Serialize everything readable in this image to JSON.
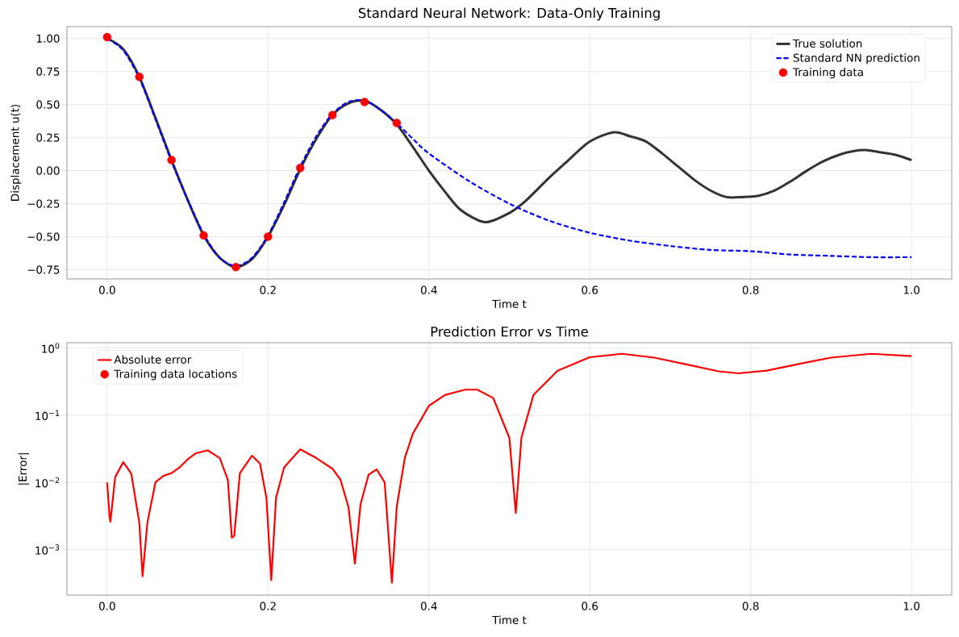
{
  "chart_data": [
    {
      "type": "line",
      "title": "Standard Neural Network: Data-Only Training",
      "xlabel": "Time t",
      "ylabel": "Displacement u(t)",
      "xlim": [
        -0.05,
        1.05
      ],
      "ylim": [
        -0.82,
        1.09
      ],
      "xticks": [
        {
          "value": 0,
          "label": "0.0"
        },
        {
          "value": 0.2,
          "label": "0.2"
        },
        {
          "value": 0.4,
          "label": "0.4"
        },
        {
          "value": 0.6,
          "label": "0.6"
        },
        {
          "value": 0.8,
          "label": "0.8"
        },
        {
          "value": 1,
          "label": "1.0"
        }
      ],
      "yticks": [
        {
          "value": -0.75,
          "label": "−0.75"
        },
        {
          "value": -0.5,
          "label": "−0.50"
        },
        {
          "value": -0.25,
          "label": "−0.25"
        },
        {
          "value": 0,
          "label": "0.00"
        },
        {
          "value": 0.25,
          "label": "0.25"
        },
        {
          "value": 0.5,
          "label": "0.50"
        },
        {
          "value": 0.75,
          "label": "0.75"
        },
        {
          "value": 1,
          "label": "1.00"
        }
      ],
      "grid": true,
      "legend": "top right",
      "series": [
        {
          "name": "True solution",
          "line_style": "solid",
          "color": "#333333",
          "x": [
            0,
            0.02,
            0.04,
            0.06,
            0.08,
            0.1,
            0.12,
            0.14,
            0.16,
            0.18,
            0.2,
            0.22,
            0.24,
            0.26,
            0.28,
            0.3,
            0.32,
            0.34,
            0.36,
            0.38,
            0.4,
            0.42,
            0.44,
            0.47,
            0.5,
            0.52,
            0.55,
            0.57,
            0.6,
            0.63,
            0.65,
            0.67,
            0.69,
            0.71,
            0.73,
            0.75,
            0.77,
            0.79,
            0.81,
            0.83,
            0.85,
            0.87,
            0.89,
            0.91,
            0.93,
            0.945,
            0.96,
            0.98,
            1.0
          ],
          "values": [
            1.0,
            0.92,
            0.71,
            0.4,
            0.08,
            -0.22,
            -0.49,
            -0.66,
            -0.73,
            -0.67,
            -0.5,
            -0.26,
            0.01,
            0.24,
            0.42,
            0.51,
            0.53,
            0.46,
            0.35,
            0.18,
            0.0,
            -0.16,
            -0.3,
            -0.39,
            -0.32,
            -0.23,
            -0.05,
            0.06,
            0.22,
            0.29,
            0.26,
            0.22,
            0.13,
            0.03,
            -0.07,
            -0.15,
            -0.2,
            -0.2,
            -0.19,
            -0.15,
            -0.08,
            0.0,
            0.07,
            0.12,
            0.15,
            0.155,
            0.14,
            0.12,
            0.08
          ]
        },
        {
          "name": "Standard NN prediction",
          "line_style": "dashed",
          "color": "#0000ff",
          "x": [
            0,
            0.02,
            0.04,
            0.06,
            0.08,
            0.1,
            0.12,
            0.14,
            0.16,
            0.18,
            0.2,
            0.22,
            0.24,
            0.26,
            0.28,
            0.3,
            0.32,
            0.34,
            0.36,
            0.38,
            0.4,
            0.45,
            0.5,
            0.55,
            0.6,
            0.65,
            0.7,
            0.75,
            0.8,
            0.85,
            0.9,
            0.95,
            1.0
          ],
          "values": [
            1.0,
            0.91,
            0.7,
            0.39,
            0.07,
            -0.22,
            -0.48,
            -0.66,
            -0.72,
            -0.66,
            -0.49,
            -0.24,
            0.03,
            0.26,
            0.43,
            0.52,
            0.53,
            0.46,
            0.36,
            0.24,
            0.13,
            -0.08,
            -0.25,
            -0.38,
            -0.47,
            -0.53,
            -0.57,
            -0.6,
            -0.61,
            -0.635,
            -0.645,
            -0.655,
            -0.655
          ]
        },
        {
          "name": "Training data",
          "type": "scatter",
          "color": "#ff0000",
          "x": [
            0,
            0.04,
            0.08,
            0.12,
            0.16,
            0.2,
            0.24,
            0.28,
            0.32,
            0.36
          ],
          "values": [
            1.01,
            0.71,
            0.08,
            -0.49,
            -0.73,
            -0.5,
            0.02,
            0.42,
            0.52,
            0.36
          ]
        }
      ]
    },
    {
      "type": "line",
      "title": "Prediction Error vs Time",
      "xlabel": "Time t",
      "ylabel": "|Error|",
      "log": true,
      "xlim": [
        -0.05,
        1.05
      ],
      "ylim": [
        0.00021,
        1.2
      ],
      "xticks": [
        {
          "value": 0,
          "label": "0.0"
        },
        {
          "value": 0.2,
          "label": "0.2"
        },
        {
          "value": 0.4,
          "label": "0.4"
        },
        {
          "value": 0.6,
          "label": "0.6"
        },
        {
          "value": 0.8,
          "label": "0.8"
        },
        {
          "value": 1,
          "label": "1.0"
        }
      ],
      "yticks": [
        {
          "value": 0.001,
          "label": "10$^{−3}$"
        },
        {
          "value": 0.01,
          "label": "10$^{−2}$"
        },
        {
          "value": 0.1,
          "label": "10$^{−1}$"
        },
        {
          "value": 1,
          "label": "10$^{0}$"
        }
      ],
      "grid": true,
      "legend": "top left",
      "series": [
        {
          "name": "Absolute error",
          "line_style": "solid",
          "color": "#ff0000",
          "x": [
            0,
            0.003,
            0.004,
            0.01,
            0.02,
            0.03,
            0.04,
            0.044,
            0.05,
            0.06,
            0.07,
            0.08,
            0.09,
            0.1,
            0.11,
            0.125,
            0.14,
            0.15,
            0.155,
            0.158,
            0.165,
            0.18,
            0.19,
            0.198,
            0.204,
            0.21,
            0.22,
            0.24,
            0.26,
            0.28,
            0.29,
            0.3,
            0.308,
            0.315,
            0.325,
            0.335,
            0.345,
            0.354,
            0.36,
            0.37,
            0.38,
            0.4,
            0.42,
            0.445,
            0.46,
            0.48,
            0.5,
            0.508,
            0.515,
            0.53,
            0.56,
            0.6,
            0.64,
            0.68,
            0.72,
            0.76,
            0.785,
            0.82,
            0.86,
            0.9,
            0.95,
            1.0
          ],
          "values": [
            0.01,
            0.0031,
            0.0026,
            0.012,
            0.02,
            0.0135,
            0.0025,
            0.0004,
            0.0025,
            0.01,
            0.0125,
            0.0137,
            0.0167,
            0.022,
            0.027,
            0.03,
            0.023,
            0.011,
            0.0015,
            0.0016,
            0.0137,
            0.025,
            0.019,
            0.0059,
            0.00035,
            0.0059,
            0.0167,
            0.031,
            0.023,
            0.016,
            0.011,
            0.0043,
            0.00062,
            0.0047,
            0.013,
            0.0156,
            0.01,
            0.00032,
            0.0043,
            0.023,
            0.053,
            0.138,
            0.2,
            0.24,
            0.24,
            0.18,
            0.046,
            0.0035,
            0.046,
            0.2,
            0.46,
            0.73,
            0.82,
            0.72,
            0.57,
            0.45,
            0.42,
            0.46,
            0.58,
            0.72,
            0.82,
            0.76
          ]
        },
        {
          "name": "Training data locations",
          "type": "scatter",
          "color": "#ff0000"
        }
      ]
    }
  ]
}
